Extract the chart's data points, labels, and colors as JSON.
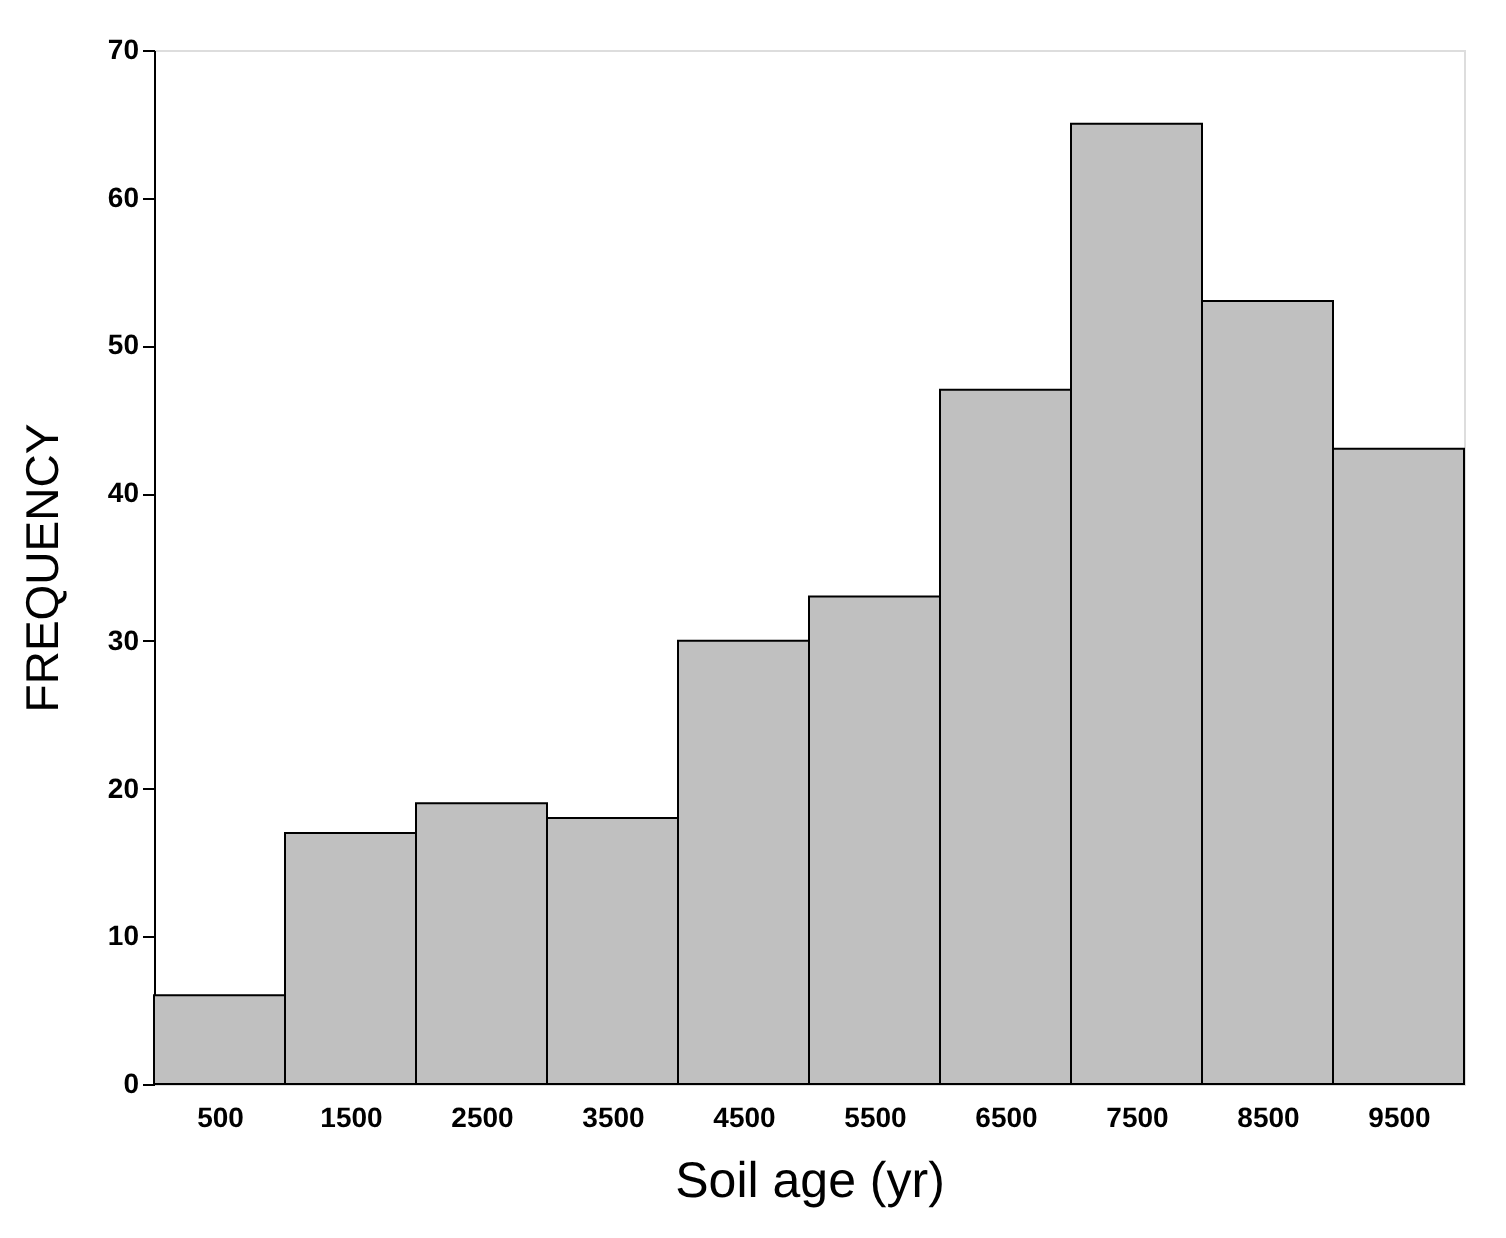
{
  "chart_data": {
    "type": "histogram",
    "xlabel": "Soil age (yr)",
    "ylabel": "FREQUENCY",
    "bins": [
      0,
      1000,
      2000,
      3000,
      4000,
      5000,
      6000,
      7000,
      8000,
      9000,
      10000
    ],
    "values": [
      6,
      17,
      19,
      18,
      30,
      33,
      47,
      65,
      53,
      43
    ],
    "color": "#c0c0c0",
    "xlim": [
      0,
      10000
    ],
    "xticks": [
      500,
      1500,
      2500,
      3500,
      4500,
      5500,
      6500,
      7500,
      8500,
      9500
    ],
    "ylim": [
      0,
      70
    ],
    "yticks": [
      0,
      10,
      20,
      30,
      40,
      50,
      60,
      70
    ],
    "grid": false
  }
}
